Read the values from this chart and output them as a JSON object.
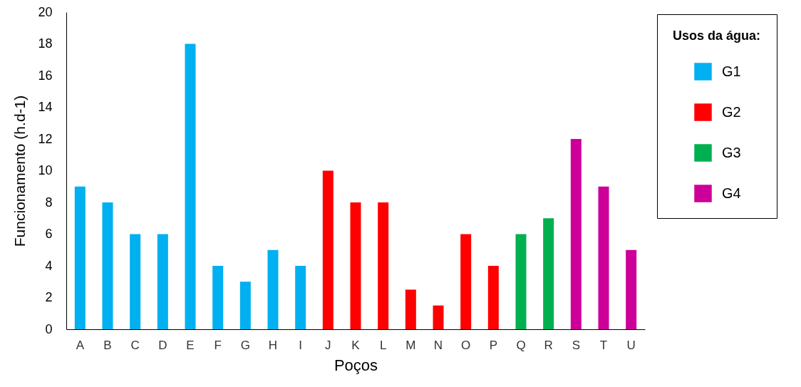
{
  "chart_data": {
    "type": "bar",
    "xlabel": "Poços",
    "ylabel": "Funcionamento (h.d-1)",
    "legend_title": "Usos da água:",
    "legend": "top right",
    "categories": [
      "A",
      "B",
      "C",
      "D",
      "E",
      "F",
      "G",
      "H",
      "I",
      "J",
      "K",
      "L",
      "M",
      "N",
      "O",
      "P",
      "Q",
      "R",
      "S",
      "T",
      "U"
    ],
    "series": [
      {
        "name": "G1",
        "color": "#00b0f0",
        "values": [
          9,
          8,
          6,
          6,
          18,
          4,
          3,
          5,
          4,
          null,
          null,
          null,
          null,
          null,
          null,
          null,
          null,
          null,
          null,
          null,
          null
        ]
      },
      {
        "name": "G2",
        "color": "#ff0000",
        "values": [
          null,
          null,
          null,
          null,
          null,
          null,
          null,
          null,
          null,
          10,
          8,
          8,
          2.5,
          1.5,
          6,
          4,
          null,
          null,
          null,
          null,
          null
        ]
      },
      {
        "name": "G3",
        "color": "#00b050",
        "values": [
          null,
          null,
          null,
          null,
          null,
          null,
          null,
          null,
          null,
          null,
          null,
          null,
          null,
          null,
          null,
          null,
          6,
          7,
          null,
          null,
          null
        ]
      },
      {
        "name": "G4",
        "color": "#cc0099",
        "values": [
          null,
          null,
          null,
          null,
          null,
          null,
          null,
          null,
          null,
          null,
          null,
          null,
          null,
          null,
          null,
          null,
          null,
          null,
          12,
          9,
          5
        ]
      }
    ],
    "ylim": [
      0,
      20
    ],
    "yticks": [
      0,
      2,
      4,
      6,
      8,
      10,
      12,
      14,
      16,
      18,
      20
    ]
  }
}
